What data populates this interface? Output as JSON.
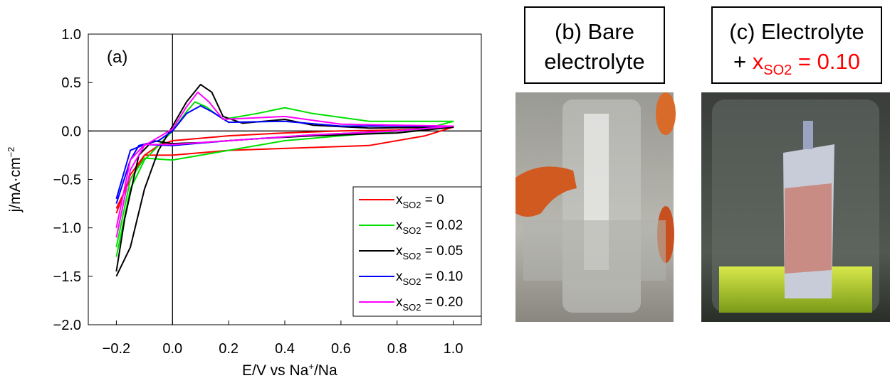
{
  "chart_data": {
    "type": "line",
    "panel_label": "(a)",
    "x_label": {
      "text": "E/V vs Na",
      "sup": "+",
      "rest": "/Na"
    },
    "y_label": {
      "text": "j/mA·cm",
      "sup": "−2"
    },
    "xlim": [
      -0.3,
      1.1
    ],
    "ylim": [
      -2.0,
      1.0
    ],
    "xticks": [
      {
        "value": -0.2,
        "label": "−0.2"
      },
      {
        "value": 0,
        "label": "0.0"
      },
      0.2,
      0.4,
      0.6,
      0.8,
      {
        "value": 1,
        "label": "1.0"
      }
    ],
    "yticks": [
      {
        "value": 1,
        "label": "1.0"
      },
      0.5,
      {
        "value": 0,
        "label": "0.0"
      },
      {
        "value": -0.5,
        "label": "−0.5"
      },
      {
        "value": -1,
        "label": "−1.0"
      },
      {
        "value": -1.5,
        "label": "−1.5"
      },
      {
        "value": -2,
        "label": "−2.0"
      }
    ],
    "zero_lines": true,
    "legend": "lower right",
    "series": [
      {
        "name": {
          "main": "x",
          "sub": "SO2",
          "rest": " = 0"
        },
        "color": "#ff0000",
        "x": [
          -0.2,
          -0.15,
          -0.1,
          -0.05,
          0,
          0.2,
          0.4,
          0.6,
          0.8,
          1.0,
          0.9,
          0.7,
          0.4,
          0.2,
          0,
          -0.1,
          -0.15,
          -0.2
        ],
        "values": [
          -0.85,
          -0.45,
          -0.25,
          -0.15,
          -0.1,
          -0.05,
          -0.02,
          0,
          0.01,
          0.04,
          -0.05,
          -0.15,
          -0.18,
          -0.2,
          -0.25,
          -0.25,
          -0.5,
          -0.8
        ]
      },
      {
        "name": {
          "main": "x",
          "sub": "SO2",
          "rest": " = 0.02"
        },
        "color": "#00e000",
        "x": [
          -0.2,
          -0.15,
          -0.1,
          0,
          0.05,
          0.08,
          0.12,
          0.18,
          0.3,
          0.4,
          0.5,
          0.7,
          1.0,
          0.9,
          0.6,
          0.4,
          0.2,
          0,
          -0.1,
          -0.15,
          -0.2
        ],
        "values": [
          -1.3,
          -0.6,
          -0.3,
          0.0,
          0.2,
          0.3,
          0.25,
          0.12,
          0.18,
          0.24,
          0.18,
          0.1,
          0.1,
          0.02,
          -0.05,
          -0.1,
          -0.2,
          -0.3,
          -0.28,
          -0.5,
          -1.2
        ]
      },
      {
        "name": {
          "main": "x",
          "sub": "SO2",
          "rest": " = 0.05"
        },
        "color": "#000000",
        "x": [
          -0.2,
          -0.15,
          -0.1,
          -0.05,
          0,
          0.05,
          0.1,
          0.14,
          0.18,
          0.25,
          0.4,
          0.5,
          0.7,
          1.0,
          0.8,
          0.5,
          0.3,
          0.1,
          0,
          -0.07,
          -0.12,
          -0.17,
          -0.2
        ],
        "values": [
          -1.5,
          -1.2,
          -0.6,
          -0.2,
          0.05,
          0.3,
          0.48,
          0.4,
          0.15,
          0.08,
          0.12,
          0.06,
          0.03,
          0.04,
          -0.02,
          -0.05,
          -0.08,
          -0.12,
          -0.13,
          -0.1,
          -0.25,
          -0.9,
          -1.45
        ]
      },
      {
        "name": {
          "main": "x",
          "sub": "SO2",
          "rest": " = 0.10"
        },
        "color": "#0000ff",
        "x": [
          -0.2,
          -0.15,
          -0.12,
          -0.05,
          0,
          0.05,
          0.1,
          0.14,
          0.2,
          0.4,
          0.6,
          1.0,
          0.8,
          0.5,
          0.2,
          0,
          -0.1,
          -0.15,
          -0.2
        ],
        "values": [
          -0.75,
          -0.3,
          -0.15,
          -0.1,
          0.0,
          0.18,
          0.26,
          0.2,
          0.09,
          0.1,
          0.05,
          0.05,
          0.0,
          -0.04,
          -0.1,
          -0.15,
          -0.14,
          -0.2,
          -0.7
        ]
      },
      {
        "name": {
          "main": "x",
          "sub": "SO2",
          "rest": " = 0.20"
        },
        "color": "#ff00ff",
        "x": [
          -0.2,
          -0.15,
          -0.1,
          0,
          0.05,
          0.09,
          0.13,
          0.18,
          0.4,
          0.6,
          1.0,
          0.8,
          0.5,
          0.2,
          0,
          -0.1,
          -0.15,
          -0.2
        ],
        "values": [
          -1.1,
          -0.4,
          -0.15,
          0.02,
          0.25,
          0.4,
          0.3,
          0.12,
          0.15,
          0.07,
          0.05,
          0.0,
          -0.04,
          -0.1,
          -0.14,
          -0.14,
          -0.3,
          -1.0
        ]
      }
    ]
  },
  "photo_panels": [
    {
      "title_lines": [
        "(b) Bare",
        "electrolyte"
      ]
    },
    {
      "title_lines": [
        "(c) Electrolyte"
      ],
      "formula": {
        "prefix": "+ ",
        "main": "x",
        "sub": "SO2",
        "rest": " = 0.10"
      }
    }
  ]
}
